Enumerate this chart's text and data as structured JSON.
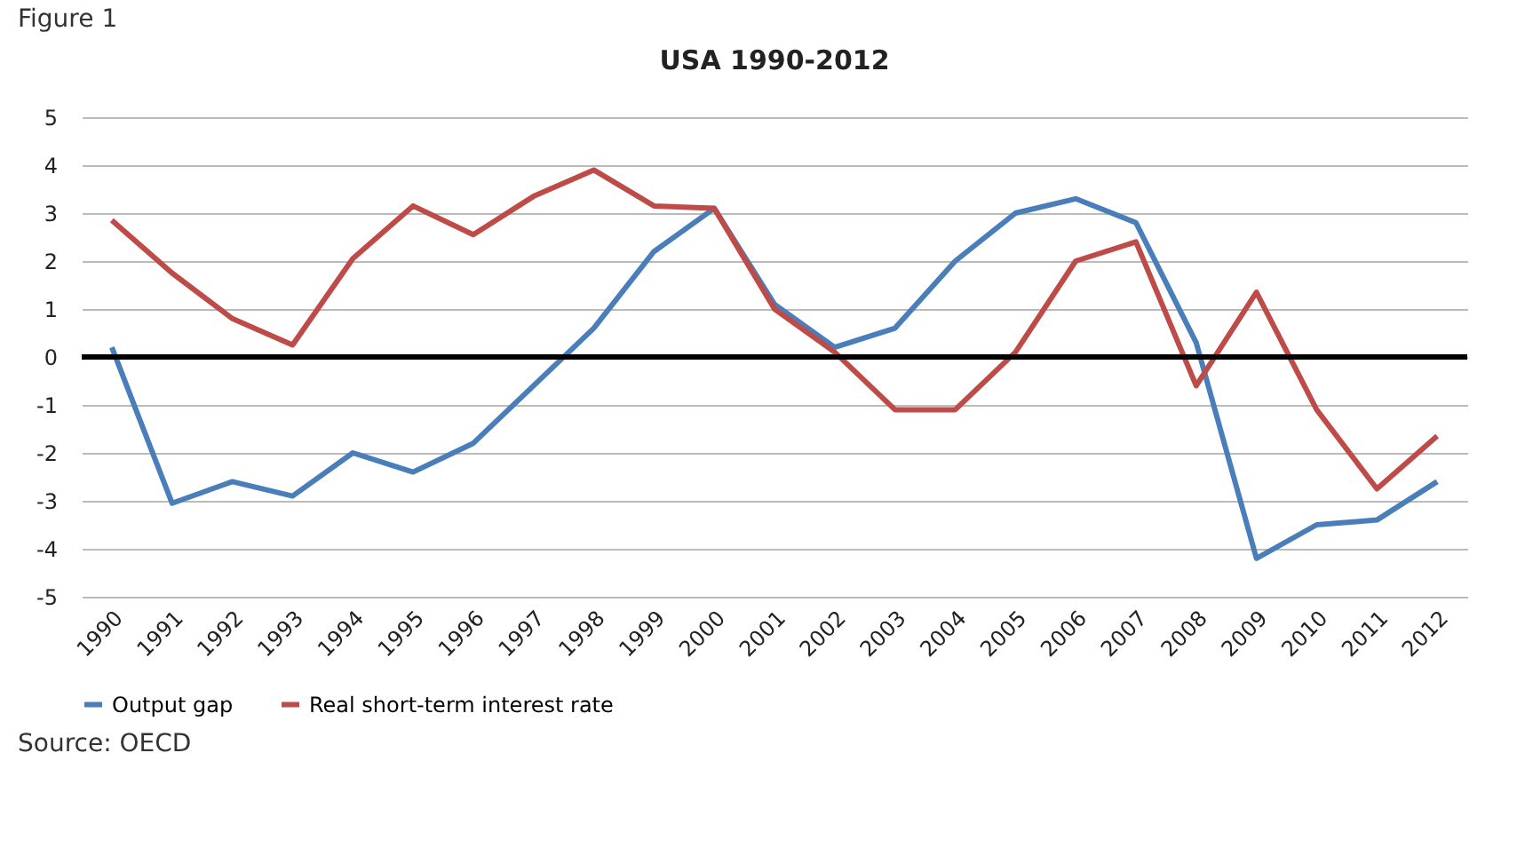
{
  "chart_data": {
    "type": "line",
    "title": "USA 1990-2012",
    "annotations": [
      "Figure 1",
      "Source: OECD"
    ],
    "categories": [
      "1990",
      "1991",
      "1992",
      "1993",
      "1994",
      "1995",
      "1996",
      "1997",
      "1998",
      "1999",
      "2000",
      "2001",
      "2002",
      "2003",
      "2004",
      "2005",
      "2006",
      "2007",
      "2008",
      "2009",
      "2010",
      "2011",
      "2012"
    ],
    "series": [
      {
        "name": "Output gap",
        "color": "#4a7ebb",
        "values": [
          0.2,
          -3.05,
          -2.6,
          -2.9,
          -2.0,
          -2.4,
          -1.8,
          -0.6,
          0.6,
          2.2,
          3.1,
          1.1,
          0.2,
          0.6,
          2.0,
          3.0,
          3.3,
          2.8,
          0.3,
          -4.2,
          -3.5,
          -3.4,
          -2.6
        ]
      },
      {
        "name": "Real short-term interest rate",
        "color": "#be4b48",
        "values": [
          2.85,
          1.75,
          0.8,
          0.25,
          2.05,
          3.15,
          2.55,
          3.35,
          3.9,
          3.15,
          3.1,
          1.0,
          0.1,
          -1.1,
          -1.1,
          0.1,
          2.0,
          2.4,
          -0.6,
          1.35,
          -1.1,
          -2.75,
          -1.65
        ]
      }
    ],
    "ylim": [
      -5,
      5
    ],
    "yticks": [
      -5,
      -4,
      -3,
      -2,
      -1,
      0,
      1,
      2,
      3,
      4,
      5
    ],
    "grid": "y",
    "legend": "bottom",
    "marker": "none",
    "line_style": "solid",
    "ref_lines": [
      {
        "axis": "y",
        "value": 0,
        "color": "#000000"
      }
    ]
  }
}
